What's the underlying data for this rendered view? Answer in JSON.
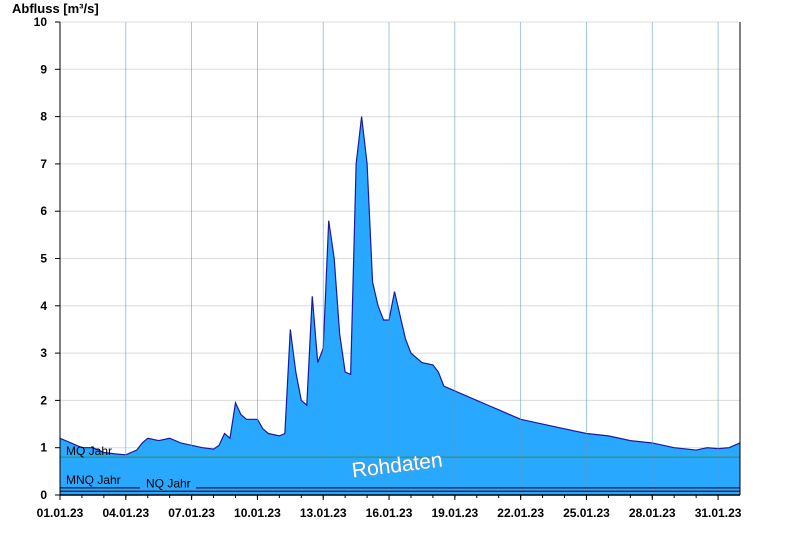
{
  "chart_data": {
    "type": "area",
    "ylabel": "Abfluss [m³/s]",
    "ylim": [
      0,
      10
    ],
    "y_ticks": [
      "0",
      "1",
      "2",
      "3",
      "4",
      "5",
      "6",
      "7",
      "8",
      "9",
      "10"
    ],
    "xlim": [
      "2023-01-01",
      "2023-01-31"
    ],
    "x_tick_labels": [
      "01.01.23",
      "04.01.23",
      "07.01.23",
      "10.01.23",
      "13.01.23",
      "16.01.23",
      "19.01.23",
      "22.01.23",
      "25.01.23",
      "28.01.23",
      "31.01.23"
    ],
    "grid": true,
    "watermark": "Rohdaten",
    "colors": {
      "fill": "#29a8ff",
      "line": "#1a1aa0",
      "grid": "#dcdcdc",
      "vgrid": "#5a9ec8",
      "mq_line": "#3c8c3c",
      "ref_line": "#1a1a3a"
    },
    "reference_lines": [
      {
        "label": "MQ Jahr",
        "value": 0.8
      },
      {
        "label": "MNQ Jahr",
        "value": 0.15
      },
      {
        "label": "NQ Jahr",
        "value": 0.1
      }
    ],
    "series": [
      {
        "x": [
          "2023-01-01 00:00",
          "2023-01-01 12:00",
          "2023-01-02 00:00",
          "2023-01-02 12:00",
          "2023-01-03 00:00",
          "2023-01-03 12:00",
          "2023-01-04 00:00",
          "2023-01-04 12:00",
          "2023-01-04 18:00",
          "2023-01-05 00:00",
          "2023-01-05 12:00",
          "2023-01-06 00:00",
          "2023-01-06 12:00",
          "2023-01-07 00:00",
          "2023-01-07 12:00",
          "2023-01-08 00:00",
          "2023-01-08 06:00",
          "2023-01-08 12:00",
          "2023-01-08 18:00",
          "2023-01-09 00:00",
          "2023-01-09 06:00",
          "2023-01-09 12:00",
          "2023-01-10 00:00",
          "2023-01-10 06:00",
          "2023-01-10 12:00",
          "2023-01-11 00:00",
          "2023-01-11 06:00",
          "2023-01-11 12:00",
          "2023-01-11 18:00",
          "2023-01-12 00:00",
          "2023-01-12 06:00",
          "2023-01-12 12:00",
          "2023-01-12 18:00",
          "2023-01-13 00:00",
          "2023-01-13 06:00",
          "2023-01-13 12:00",
          "2023-01-13 18:00",
          "2023-01-14 00:00",
          "2023-01-14 06:00",
          "2023-01-14 12:00",
          "2023-01-14 18:00",
          "2023-01-15 00:00",
          "2023-01-15 06:00",
          "2023-01-15 12:00",
          "2023-01-15 18:00",
          "2023-01-16 00:00",
          "2023-01-16 06:00",
          "2023-01-16 12:00",
          "2023-01-16 18:00",
          "2023-01-17 00:00",
          "2023-01-17 12:00",
          "2023-01-18 00:00",
          "2023-01-18 06:00",
          "2023-01-18 12:00",
          "2023-01-19 00:00",
          "2023-01-19 12:00",
          "2023-01-20 00:00",
          "2023-01-20 12:00",
          "2023-01-21 00:00",
          "2023-01-21 12:00",
          "2023-01-22 00:00",
          "2023-01-23 00:00",
          "2023-01-24 00:00",
          "2023-01-25 00:00",
          "2023-01-26 00:00",
          "2023-01-27 00:00",
          "2023-01-28 00:00",
          "2023-01-29 00:00",
          "2023-01-30 00:00",
          "2023-01-30 12:00",
          "2023-01-31 00:00",
          "2023-01-31 12:00",
          "2023-02-01 00:00"
        ],
        "values": [
          1.2,
          1.1,
          1.0,
          1.0,
          0.9,
          0.87,
          0.85,
          0.95,
          1.1,
          1.2,
          1.15,
          1.2,
          1.1,
          1.05,
          1.0,
          0.97,
          1.05,
          1.3,
          1.2,
          1.95,
          1.7,
          1.6,
          1.6,
          1.4,
          1.3,
          1.25,
          1.3,
          3.5,
          2.6,
          2.0,
          1.9,
          4.2,
          2.8,
          3.1,
          5.8,
          5.0,
          3.4,
          2.6,
          2.55,
          7.0,
          8.0,
          7.0,
          4.5,
          4.0,
          3.7,
          3.7,
          4.3,
          3.8,
          3.3,
          3.0,
          2.8,
          2.75,
          2.6,
          2.3,
          2.2,
          2.1,
          2.0,
          1.9,
          1.8,
          1.7,
          1.6,
          1.5,
          1.4,
          1.3,
          1.25,
          1.15,
          1.1,
          1.0,
          0.95,
          1.0,
          0.98,
          1.0,
          1.1
        ]
      }
    ]
  }
}
